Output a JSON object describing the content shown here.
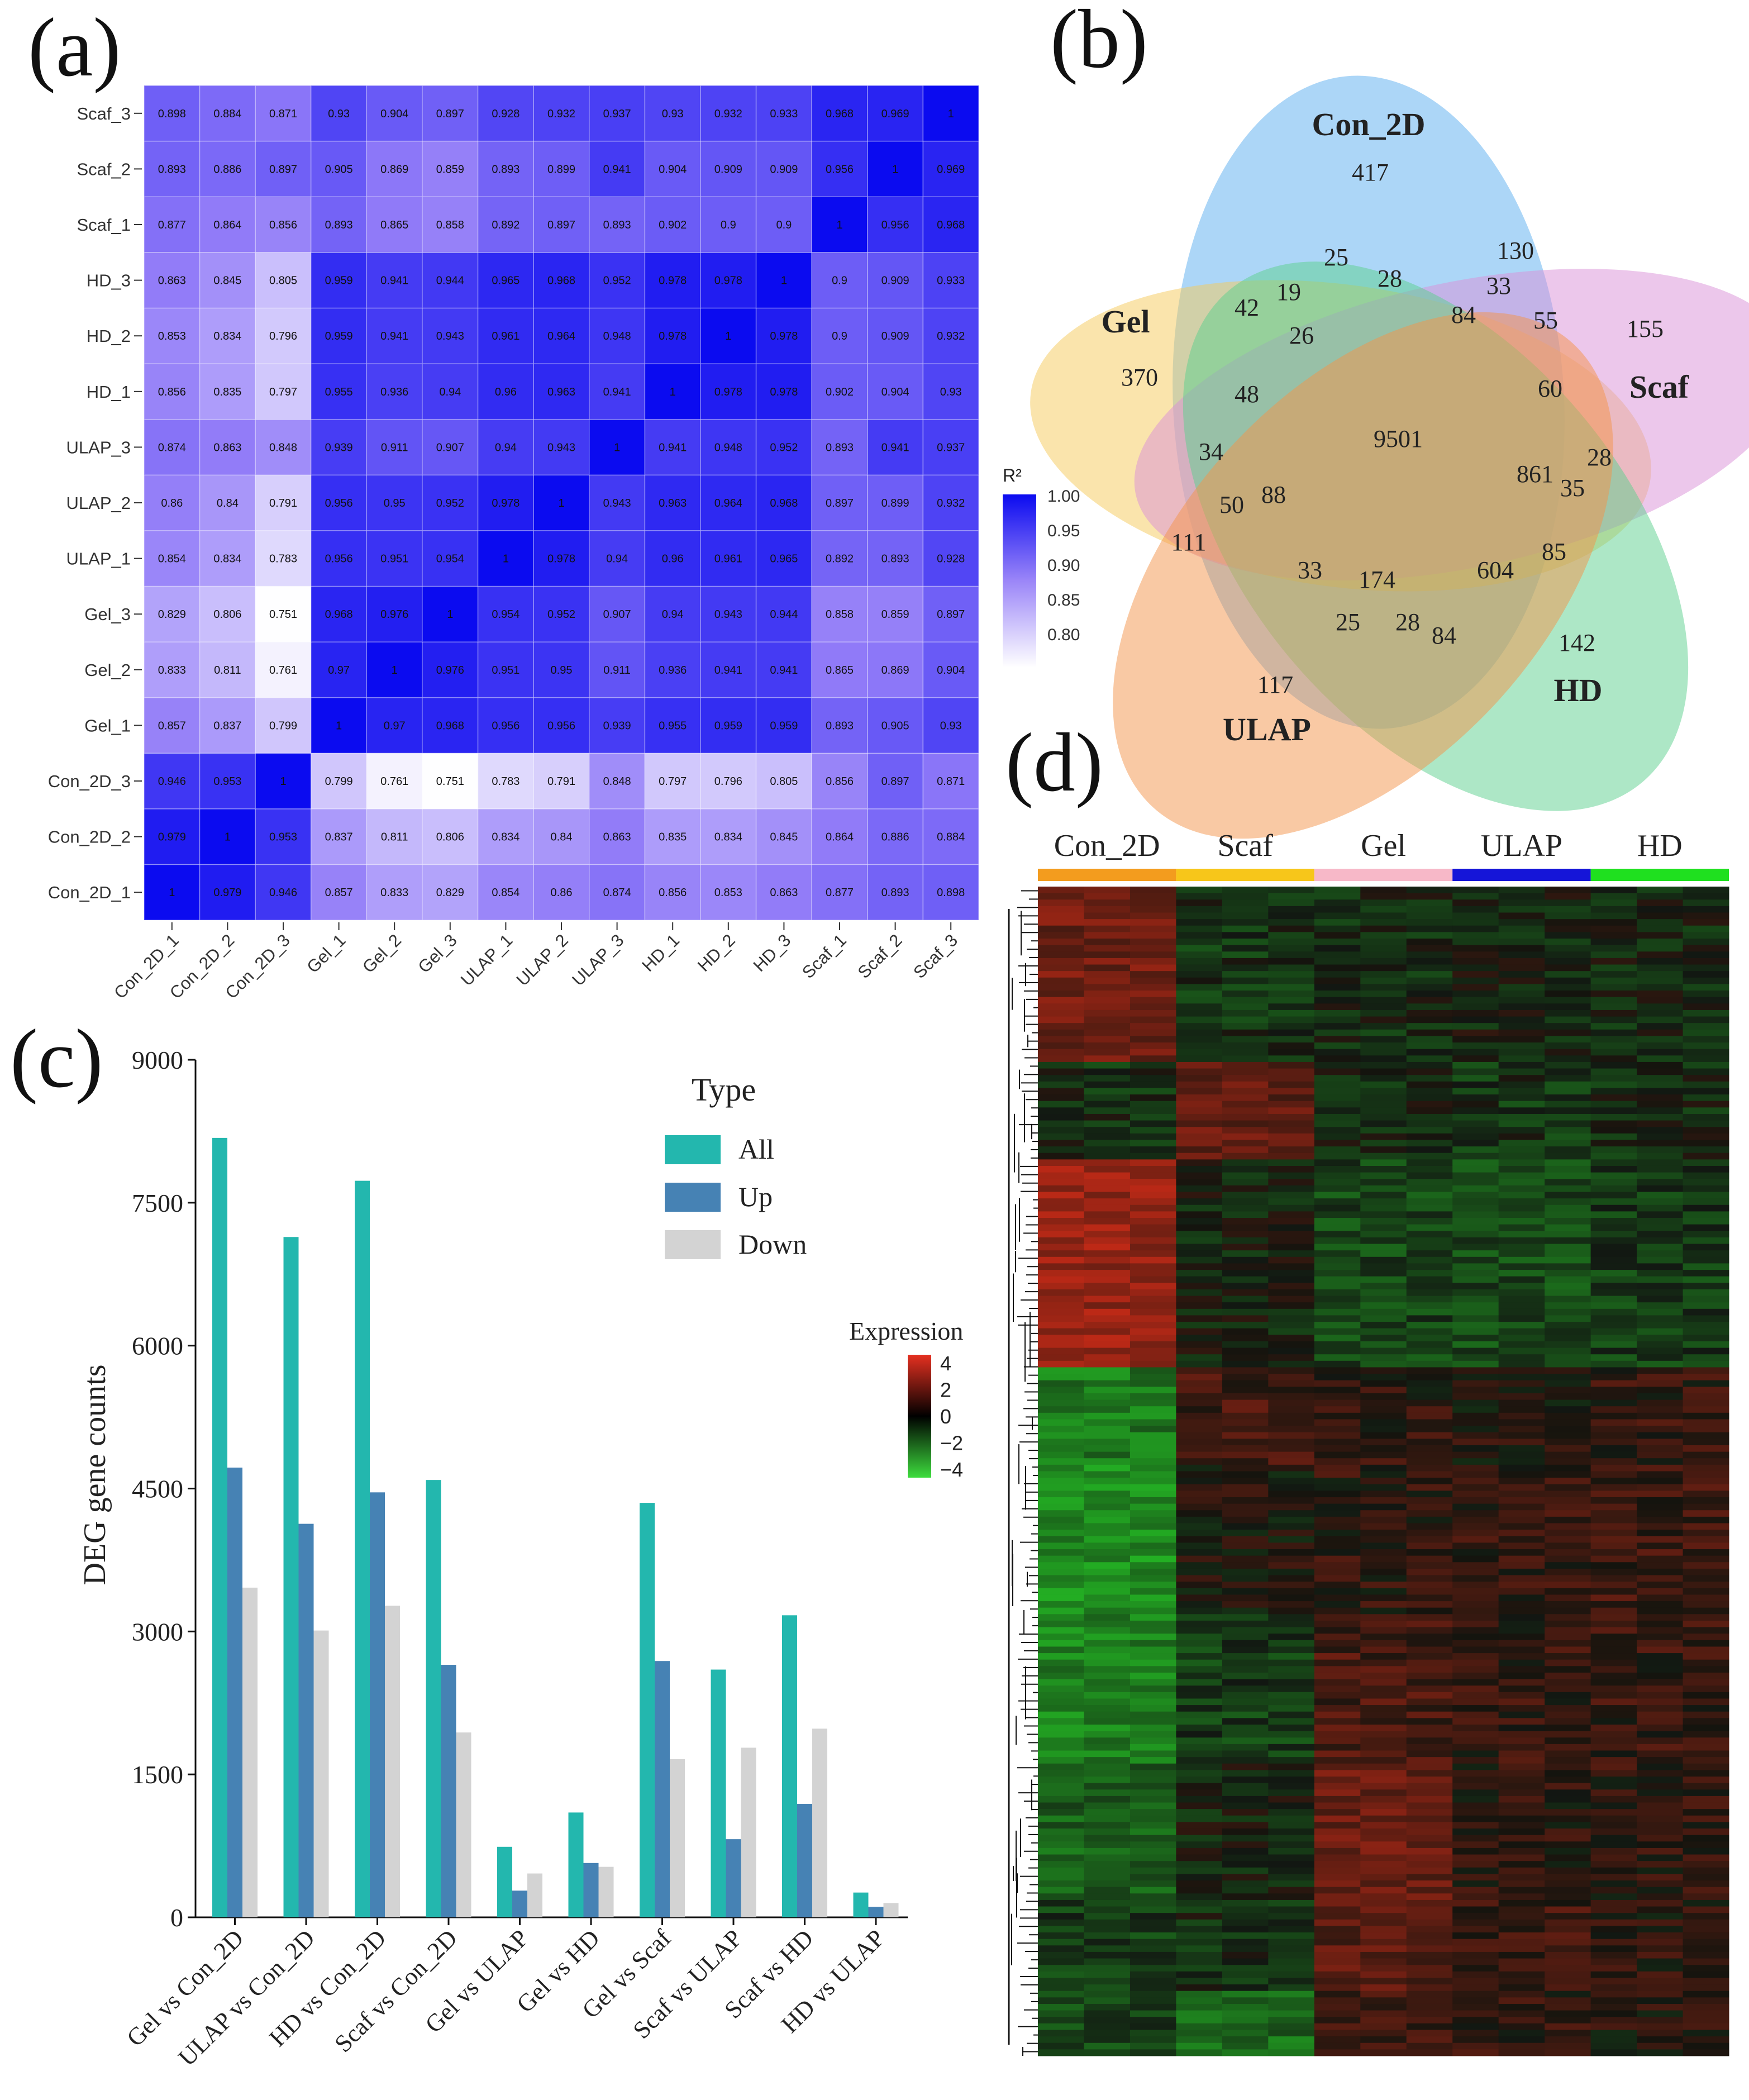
{
  "panel_labels": {
    "a": "(a)",
    "b": "(b)",
    "c": "(c)",
    "d": "(d)"
  },
  "chart_data": [
    {
      "id": "a",
      "type": "heatmap",
      "title": "",
      "samples": [
        "Con_2D_1",
        "Con_2D_2",
        "Con_2D_3",
        "Gel_1",
        "Gel_2",
        "Gel_3",
        "ULAP_1",
        "ULAP_2",
        "ULAP_3",
        "HD_1",
        "HD_2",
        "HD_3",
        "Scaf_1",
        "Scaf_2",
        "Scaf_3"
      ],
      "values": [
        [
          "1",
          "0.979",
          "0.946",
          "0.857",
          "0.833",
          "0.829",
          "0.854",
          "0.86",
          "0.874",
          "0.856",
          "0.853",
          "0.863",
          "0.877",
          "0.893",
          "0.898"
        ],
        [
          "0.979",
          "1",
          "0.953",
          "0.837",
          "0.811",
          "0.806",
          "0.834",
          "0.84",
          "0.863",
          "0.835",
          "0.834",
          "0.845",
          "0.864",
          "0.886",
          "0.884"
        ],
        [
          "0.946",
          "0.953",
          "1",
          "0.799",
          "0.761",
          "0.751",
          "0.783",
          "0.791",
          "0.848",
          "0.797",
          "0.796",
          "0.805",
          "0.856",
          "0.897",
          "0.871"
        ],
        [
          "0.857",
          "0.837",
          "0.799",
          "1",
          "0.97",
          "0.968",
          "0.956",
          "0.956",
          "0.939",
          "0.955",
          "0.959",
          "0.959",
          "0.893",
          "0.905",
          "0.93"
        ],
        [
          "0.833",
          "0.811",
          "0.761",
          "0.97",
          "1",
          "0.976",
          "0.951",
          "0.95",
          "0.911",
          "0.936",
          "0.941",
          "0.941",
          "0.865",
          "0.869",
          "0.904"
        ],
        [
          "0.829",
          "0.806",
          "0.751",
          "0.968",
          "0.976",
          "1",
          "0.954",
          "0.952",
          "0.907",
          "0.94",
          "0.943",
          "0.944",
          "0.858",
          "0.859",
          "0.897"
        ],
        [
          "0.854",
          "0.834",
          "0.783",
          "0.956",
          "0.951",
          "0.954",
          "1",
          "0.978",
          "0.94",
          "0.96",
          "0.961",
          "0.965",
          "0.892",
          "0.893",
          "0.928"
        ],
        [
          "0.86",
          "0.84",
          "0.791",
          "0.956",
          "0.95",
          "0.952",
          "0.978",
          "1",
          "0.943",
          "0.963",
          "0.964",
          "0.968",
          "0.897",
          "0.899",
          "0.932"
        ],
        [
          "0.874",
          "0.863",
          "0.848",
          "0.939",
          "0.911",
          "0.907",
          "0.94",
          "0.943",
          "1",
          "0.941",
          "0.948",
          "0.952",
          "0.893",
          "0.941",
          "0.937"
        ],
        [
          "0.856",
          "0.835",
          "0.797",
          "0.955",
          "0.936",
          "0.94",
          "0.96",
          "0.963",
          "0.941",
          "1",
          "0.978",
          "0.978",
          "0.902",
          "0.904",
          "0.93"
        ],
        [
          "0.853",
          "0.834",
          "0.796",
          "0.959",
          "0.941",
          "0.943",
          "0.961",
          "0.964",
          "0.948",
          "0.978",
          "1",
          "0.978",
          "0.9",
          "0.909",
          "0.932"
        ],
        [
          "0.863",
          "0.845",
          "0.805",
          "0.959",
          "0.941",
          "0.944",
          "0.965",
          "0.968",
          "0.952",
          "0.978",
          "0.978",
          "1",
          "0.9",
          "0.909",
          "0.933"
        ],
        [
          "0.877",
          "0.864",
          "0.856",
          "0.893",
          "0.865",
          "0.858",
          "0.892",
          "0.897",
          "0.893",
          "0.902",
          "0.9",
          "0.9",
          "1",
          "0.956",
          "0.968"
        ],
        [
          "0.893",
          "0.886",
          "0.897",
          "0.905",
          "0.869",
          "0.859",
          "0.893",
          "0.899",
          "0.941",
          "0.904",
          "0.909",
          "0.909",
          "0.956",
          "1",
          "0.969"
        ],
        [
          "0.898",
          "0.884",
          "0.871",
          "0.93",
          "0.904",
          "0.897",
          "0.928",
          "0.932",
          "0.937",
          "0.93",
          "0.932",
          "0.933",
          "0.968",
          "0.969",
          "1"
        ]
      ],
      "legend_title": "R²",
      "legend_ticks": [
        "1.00",
        "0.95",
        "0.90",
        "0.85",
        "0.80"
      ],
      "color_range": [
        0.75,
        1.0
      ],
      "colors": {
        "low": "#ffffff",
        "high": "#0b0bf0",
        "mid": "#7f5ff7"
      }
    },
    {
      "id": "b",
      "type": "venn",
      "sets": [
        {
          "name": "Con_2D",
          "unique": "417",
          "color": "#5aaef0"
        },
        {
          "name": "Gel",
          "unique": "370",
          "color": "#f5c95a"
        },
        {
          "name": "Scaf",
          "unique": "155",
          "color": "#d98fd8"
        },
        {
          "name": "HD",
          "unique": "142",
          "color": "#5ccf8e"
        },
        {
          "name": "ULAP",
          "unique": "117",
          "color": "#f3944a"
        }
      ],
      "intersections": [
        "25",
        "130",
        "42",
        "19",
        "28",
        "33",
        "84",
        "55",
        "26",
        "60",
        "48",
        "9501",
        "34",
        "861",
        "28",
        "35",
        "50",
        "88",
        "111",
        "85",
        "33",
        "174",
        "604",
        "25",
        "28",
        "84"
      ]
    },
    {
      "id": "c",
      "type": "bar",
      "title": "",
      "xlabel": "",
      "ylabel": "DEG gene counts",
      "ylim": [
        0,
        9000
      ],
      "yticks": [
        "0",
        "1500",
        "3000",
        "4500",
        "6000",
        "7500",
        "9000"
      ],
      "categories": [
        "Gel vs Con_2D",
        "ULAP vs Con_2D",
        "HD vs Con_2D",
        "Scaf vs Con_2D",
        "Gel vs ULAP",
        "Gel vs HD",
        "Gel vs Scaf",
        "Scaf vs ULAP",
        "Scaf vs HD",
        "HD vs ULAP"
      ],
      "legend_title": "Type",
      "series": [
        {
          "name": "All",
          "color": "#23b7ae",
          "values": [
            8180,
            7140,
            7730,
            4590,
            740,
            1100,
            4350,
            2600,
            3170,
            260
          ]
        },
        {
          "name": "Up",
          "color": "#4682b4",
          "values": [
            4720,
            4130,
            4460,
            2650,
            280,
            570,
            2690,
            820,
            1190,
            110
          ]
        },
        {
          "name": "Down",
          "color": "#d3d3d3",
          "values": [
            3460,
            3010,
            3270,
            1940,
            460,
            530,
            1660,
            1780,
            1980,
            150
          ]
        }
      ]
    },
    {
      "id": "d",
      "type": "heatmap",
      "groups": [
        {
          "name": "Con_2D",
          "color": "#f39c1e"
        },
        {
          "name": "Scaf",
          "color": "#f7c61a"
        },
        {
          "name": "Gel",
          "color": "#f7b8c8"
        },
        {
          "name": "ULAP",
          "color": "#1515d8"
        },
        {
          "name": "HD",
          "color": "#1fe01f"
        }
      ],
      "legend_title": "Expression",
      "legend_ticks": [
        "4",
        "2",
        "0",
        "−2",
        "−4"
      ],
      "color_range": [
        -4,
        4
      ]
    }
  ]
}
